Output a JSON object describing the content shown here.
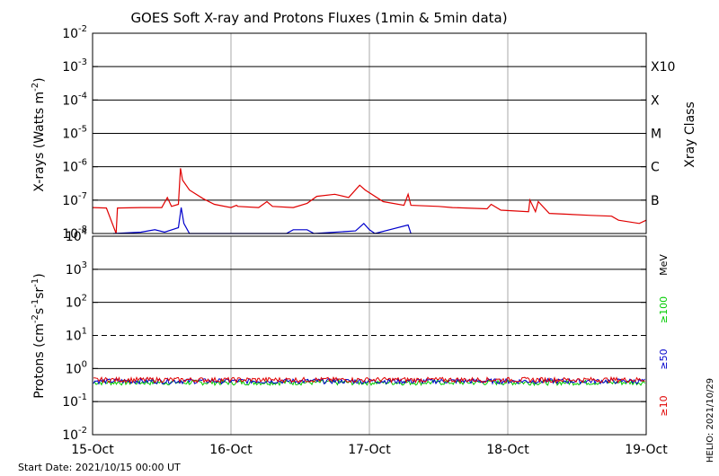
{
  "chart_data": [
    {
      "type": "line",
      "title": "GOES Soft X-ray and Protons Fluxes   (1min & 5min data)",
      "ylabel": "X-rays (Watts m",
      "ylabel_sup": "-2",
      "ylabel_close": ")",
      "yscale": "log",
      "ylim": [
        1e-08,
        0.01
      ],
      "ytick_exponents": [
        -2,
        -3,
        -4,
        -5,
        -6,
        -7,
        -8
      ],
      "ytick_base": "10",
      "right_axis_label": "Xray Class",
      "class_labels": [
        {
          "label": "X10",
          "flux": 0.001
        },
        {
          "label": "X",
          "flux": 0.0001
        },
        {
          "label": "M",
          "flux": 1e-05
        },
        {
          "label": "C",
          "flux": 1e-06
        },
        {
          "label": "B",
          "flux": 1e-07
        }
      ],
      "xlim_days": [
        15,
        19
      ],
      "series": [
        {
          "color": "#e00000",
          "points": [
            [
              15.0,
              6e-08
            ],
            [
              15.1,
              5.8e-08
            ],
            [
              15.17,
              5e-09
            ],
            [
              15.18,
              5.8e-08
            ],
            [
              15.35,
              6e-08
            ],
            [
              15.5,
              6e-08
            ],
            [
              15.54,
              1.2e-07
            ],
            [
              15.57,
              6.5e-08
            ],
            [
              15.62,
              7.5e-08
            ],
            [
              15.635,
              9e-07
            ],
            [
              15.65,
              4e-07
            ],
            [
              15.7,
              2e-07
            ],
            [
              15.8,
              1.1e-07
            ],
            [
              15.88,
              7.5e-08
            ],
            [
              16.0,
              6e-08
            ],
            [
              16.04,
              7e-08
            ],
            [
              16.05,
              6.5e-08
            ],
            [
              16.2,
              6e-08
            ],
            [
              16.26,
              9e-08
            ],
            [
              16.3,
              6.5e-08
            ],
            [
              16.45,
              6e-08
            ],
            [
              16.55,
              8e-08
            ],
            [
              16.62,
              1.3e-07
            ],
            [
              16.75,
              1.5e-07
            ],
            [
              16.85,
              1.2e-07
            ],
            [
              16.93,
              2.8e-07
            ],
            [
              16.97,
              2e-07
            ],
            [
              17.1,
              9e-08
            ],
            [
              17.25,
              7e-08
            ],
            [
              17.28,
              1.5e-07
            ],
            [
              17.3,
              7e-08
            ],
            [
              17.5,
              6.5e-08
            ],
            [
              17.6,
              6e-08
            ],
            [
              17.85,
              5.5e-08
            ],
            [
              17.88,
              7.5e-08
            ],
            [
              17.95,
              5e-08
            ],
            [
              18.15,
              4.5e-08
            ],
            [
              18.16,
              1e-07
            ],
            [
              18.2,
              4.5e-08
            ],
            [
              18.22,
              9e-08
            ],
            [
              18.3,
              4e-08
            ],
            [
              18.6,
              3.5e-08
            ],
            [
              18.75,
              3.3e-08
            ],
            [
              18.8,
              2.5e-08
            ],
            [
              18.95,
              2e-08
            ],
            [
              19.0,
              2.5e-08
            ]
          ]
        },
        {
          "color": "#0000cc",
          "points": [
            [
              15.15,
              1e-08
            ],
            [
              15.35,
              1.1e-08
            ],
            [
              15.45,
              1.3e-08
            ],
            [
              15.52,
              1.1e-08
            ],
            [
              15.62,
              1.5e-08
            ],
            [
              15.64,
              6e-08
            ],
            [
              15.66,
              2e-08
            ],
            [
              15.7,
              1e-08
            ],
            [
              16.4,
              1e-08
            ],
            [
              16.45,
              1.3e-08
            ],
            [
              16.55,
              1.3e-08
            ],
            [
              16.6,
              1e-08
            ],
            [
              16.9,
              1.2e-08
            ],
            [
              16.96,
              2e-08
            ],
            [
              17.0,
              1.3e-08
            ],
            [
              17.04,
              1e-08
            ],
            [
              17.28,
              1.8e-08
            ],
            [
              17.3,
              1e-08
            ]
          ]
        }
      ]
    },
    {
      "type": "line",
      "ylabel": "Protons (cm",
      "ylabel_sup1": "-2",
      "ylabel_mid": "s",
      "ylabel_sup2": "-1",
      "ylabel_end": "sr",
      "ylabel_sup3": "-1",
      "ylabel_close": ")",
      "yscale": "log",
      "ylim": [
        0.01,
        10000.0
      ],
      "ytick_exponents": [
        4,
        3,
        2,
        1,
        0,
        -1,
        -2
      ],
      "ytick_base": "10",
      "threshold": 10,
      "right_labels": [
        {
          "label": "MeV",
          "color": "#000000"
        },
        {
          "label": "≥100",
          "color": "#00cc00"
        },
        {
          "label": "≥50",
          "color": "#0000cc"
        },
        {
          "label": "≥10",
          "color": "#e00000"
        }
      ],
      "series": [
        {
          "color": "#e00000",
          "level": 0.46
        },
        {
          "color": "#0000cc",
          "level": 0.42
        },
        {
          "color": "#00cc00",
          "level": 0.38
        }
      ],
      "x_ticks": [
        "15-Oct",
        "16-Oct",
        "17-Oct",
        "18-Oct",
        "19-Oct"
      ],
      "x_tick_days": [
        15,
        16,
        17,
        18,
        19
      ]
    }
  ],
  "footer": {
    "start_date": "Start Date: 2021/10/15 00:00 UT",
    "helio": "HELIO: 2021/10/29"
  }
}
